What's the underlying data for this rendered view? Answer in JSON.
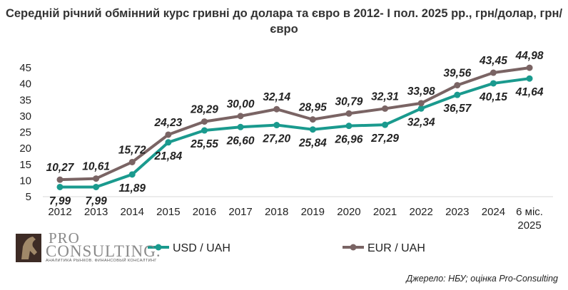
{
  "title": "Середній річний обмінний курс гривні до долара та євро в 2012- І пол. 2025 рр., грн/долар, грн/євро",
  "source": "Джерело: НБУ; оцінка Pro-Consulting",
  "logo": {
    "pro": "PRO",
    "consulting": "CONSULTING.",
    "tagline": "АНАЛИТИКА РЫНКОВ. ФИНАНСОВЫЙ КОНСАЛТИНГ"
  },
  "colors": {
    "usd": "#1a9a8e",
    "eur": "#7a6464",
    "grid": "#d9d9d9"
  },
  "chart_data": {
    "type": "line",
    "title": "Середній річний обмінний курс гривні до долара та євро в 2012- І пол. 2025 рр., грн/долар, грн/євро",
    "categories": [
      "2012",
      "2013",
      "2014",
      "2015",
      "2016",
      "2017",
      "2018",
      "2019",
      "2020",
      "2021",
      "2022",
      "2023",
      "2024",
      "6 міс. 2025"
    ],
    "series": [
      {
        "name": "USD / UAH",
        "values": [
          7.99,
          7.99,
          11.89,
          21.84,
          25.55,
          26.6,
          27.2,
          25.84,
          26.96,
          27.29,
          32.34,
          36.57,
          40.15,
          41.64
        ],
        "labels": [
          "7,99",
          "7,99",
          "11,89",
          "21,84",
          "25,55",
          "26,60",
          "27,20",
          "25,84",
          "26,96",
          "27,29",
          "32,34",
          "36,57",
          "40,15",
          "41,64"
        ]
      },
      {
        "name": "EUR / UAH",
        "values": [
          10.27,
          10.61,
          15.72,
          24.23,
          28.29,
          30.0,
          32.14,
          28.95,
          30.79,
          32.31,
          33.98,
          39.56,
          43.45,
          44.98
        ],
        "labels": [
          "10,27",
          "10,61",
          "15,72",
          "24,23",
          "28,29",
          "30,00",
          "32,14",
          "28,95",
          "30,79",
          "32,31",
          "33,98",
          "39,56",
          "43,45",
          "44,98"
        ]
      }
    ],
    "yticks": [
      "5",
      "10",
      "15",
      "20",
      "25",
      "30",
      "35",
      "40",
      "45"
    ],
    "ylim": [
      5,
      45
    ],
    "xlabel": "",
    "ylabel": "",
    "grid": false,
    "legend": "bottom"
  }
}
